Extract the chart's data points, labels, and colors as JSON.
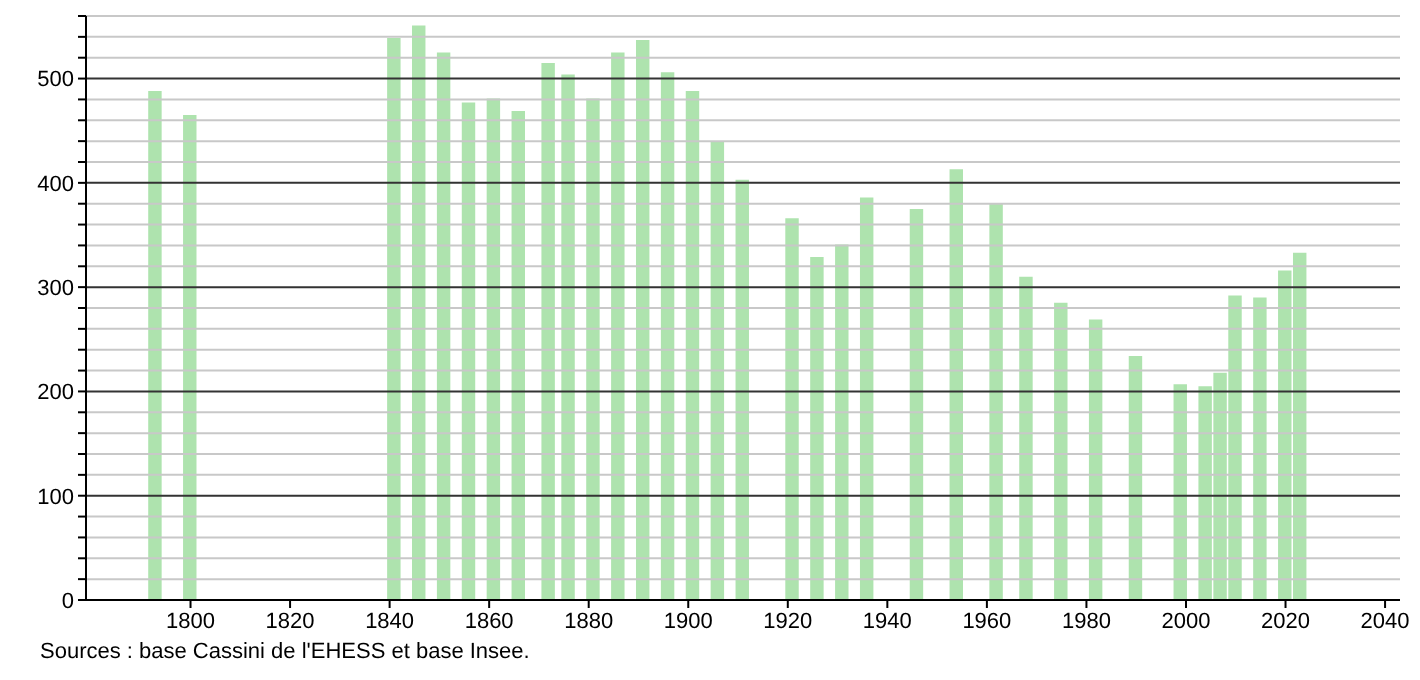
{
  "chart_data": {
    "type": "bar",
    "x": [
      1793,
      1800,
      1841,
      1846,
      1851,
      1856,
      1861,
      1866,
      1872,
      1876,
      1881,
      1886,
      1891,
      1896,
      1901,
      1906,
      1911,
      1921,
      1926,
      1931,
      1936,
      1946,
      1954,
      1962,
      1968,
      1975,
      1982,
      1990,
      1999,
      2004,
      2007,
      2010,
      2015,
      2020,
      2023
    ],
    "values": [
      488,
      465,
      539,
      551,
      525,
      477,
      481,
      469,
      515,
      504,
      481,
      525,
      537,
      506,
      488,
      440,
      403,
      366,
      329,
      341,
      386,
      375,
      413,
      380,
      310,
      285,
      269,
      234,
      207,
      205,
      218,
      292,
      290,
      316,
      333
    ],
    "color": "#aee3ae",
    "xlim": [
      1779,
      2043
    ],
    "xticks": [
      1800,
      1820,
      1840,
      1860,
      1880,
      1900,
      1920,
      1940,
      1960,
      1980,
      2000,
      2020,
      2040
    ],
    "ylim": [
      0,
      560
    ],
    "yticks": [
      0,
      {
        "value": 20,
        "label": null
      },
      {
        "value": 40,
        "label": null
      },
      {
        "value": 60,
        "label": null
      },
      {
        "value": 80,
        "label": null
      },
      100,
      {
        "value": 120,
        "label": null
      },
      {
        "value": 140,
        "label": null
      },
      {
        "value": 160,
        "label": null
      },
      {
        "value": 180,
        "label": null
      },
      200,
      {
        "value": 220,
        "label": null
      },
      {
        "value": 240,
        "label": null
      },
      {
        "value": 260,
        "label": null
      },
      {
        "value": 280,
        "label": null
      },
      300,
      {
        "value": 320,
        "label": null
      },
      {
        "value": 340,
        "label": null
      },
      {
        "value": 360,
        "label": null
      },
      {
        "value": 380,
        "label": null
      },
      400,
      {
        "value": 420,
        "label": null
      },
      {
        "value": 440,
        "label": null
      },
      {
        "value": 460,
        "label": null
      },
      {
        "value": 480,
        "label": null
      },
      500,
      {
        "value": 520,
        "label": null
      },
      {
        "value": 540,
        "label": null
      },
      {
        "value": 560,
        "label": null
      }
    ],
    "grid": "y",
    "annotations": [
      "Sources : base Cassini de l'EHESS et base Insee."
    ]
  }
}
